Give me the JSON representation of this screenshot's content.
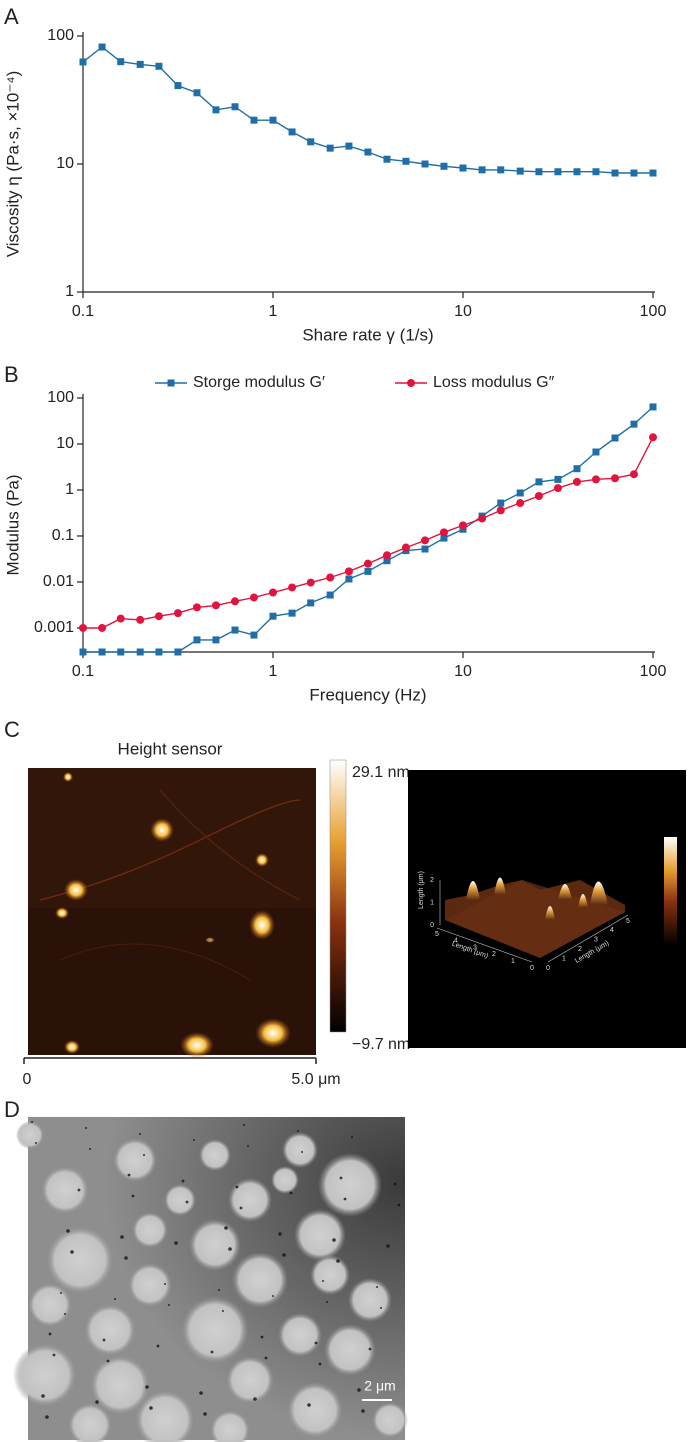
{
  "panels": {
    "labels": [
      "A",
      "B",
      "C",
      "D"
    ]
  },
  "chart_data": [
    {
      "type": "line",
      "xscale": "log",
      "yscale": "log",
      "xlabel": "Share rate γ (1/s)",
      "ylabel": "Viscosity η (Pa·s, ×10⁻⁴)",
      "x": [
        0.1,
        0.126,
        0.158,
        0.2,
        0.251,
        0.316,
        0.398,
        0.501,
        0.631,
        0.794,
        1,
        1.26,
        1.58,
        2,
        2.51,
        3.16,
        3.98,
        5.01,
        6.31,
        7.94,
        10,
        12.6,
        15.8,
        20,
        25.1,
        31.6,
        39.8,
        50.1,
        63.1,
        79.4,
        100
      ],
      "values": [
        62.7,
        82,
        63,
        60,
        58,
        41,
        36,
        26.5,
        28,
        22,
        22,
        17.8,
        14.9,
        13.3,
        13.8,
        12.4,
        10.9,
        10.5,
        10,
        9.6,
        9.3,
        9.0,
        9.0,
        8.8,
        8.7,
        8.7,
        8.7,
        8.7,
        8.5,
        8.5,
        8.5
      ],
      "color": "#1f6ea8",
      "marker": "square",
      "xlim": [
        0.1,
        100
      ],
      "ylim": [
        1,
        100
      ],
      "xticks": [
        0.1,
        1,
        10,
        100
      ],
      "yticks": [
        1,
        10,
        100
      ]
    },
    {
      "type": "line",
      "xscale": "log",
      "yscale": "log",
      "legend": "top",
      "xlabel": "Frequency (Hz)",
      "ylabel": "Modulus (Pa)",
      "x": [
        0.1,
        0.126,
        0.158,
        0.2,
        0.251,
        0.316,
        0.398,
        0.501,
        0.631,
        0.794,
        1,
        1.26,
        1.58,
        2,
        2.51,
        3.16,
        3.98,
        5.01,
        6.31,
        7.94,
        10,
        12.6,
        15.8,
        20,
        25.1,
        31.6,
        39.8,
        50.1,
        63.1,
        79.4,
        100
      ],
      "series": [
        {
          "name": "Storge modulus G′",
          "color": "#1f6ea8",
          "marker": "square",
          "values": [
            0.0003,
            0.0003,
            0.0003,
            0.0003,
            0.0003,
            0.0003,
            0.00055,
            0.00055,
            0.0009,
            0.0007,
            0.0018,
            0.0021,
            0.0035,
            0.0052,
            0.0116,
            0.017,
            0.029,
            0.048,
            0.052,
            0.09,
            0.14,
            0.27,
            0.52,
            0.86,
            1.5,
            1.7,
            2.9,
            6.7,
            13.5,
            27,
            64
          ]
        },
        {
          "name": "Loss modulus G″",
          "color": "#e0143c",
          "marker": "circle",
          "values": [
            0.001,
            0.001,
            0.0016,
            0.0015,
            0.0018,
            0.0021,
            0.0028,
            0.0031,
            0.0038,
            0.0046,
            0.0059,
            0.0076,
            0.0097,
            0.0125,
            0.017,
            0.025,
            0.038,
            0.056,
            0.08,
            0.12,
            0.17,
            0.24,
            0.36,
            0.52,
            0.74,
            1.1,
            1.5,
            1.7,
            1.8,
            2.2,
            14
          ]
        }
      ],
      "xlim": [
        0.1,
        100
      ],
      "ylim": [
        0.0003,
        100
      ],
      "xticks": [
        0.1,
        1,
        10,
        100
      ],
      "yticks": [
        0.001,
        0.01,
        0.1,
        1,
        10,
        100
      ]
    }
  ],
  "afm": {
    "title": "Height sensor",
    "scale_max": "29.1 nm",
    "scale_min": "−9.7 nm",
    "axis_start": "0",
    "axis_end": "5.0 μm",
    "axis_3d": {
      "label_left": "Length (μm)",
      "label_right": "Length (μm)",
      "label_z": "Length (μm)",
      "left_ticks": [
        "5",
        "4",
        "3",
        "2",
        "1",
        "0"
      ],
      "right_ticks": [
        "0",
        "1",
        "2",
        "3",
        "4",
        "5"
      ],
      "z_ticks": [
        "0",
        "1",
        "2"
      ]
    }
  },
  "tem": {
    "scale_bar": "2 μm"
  }
}
